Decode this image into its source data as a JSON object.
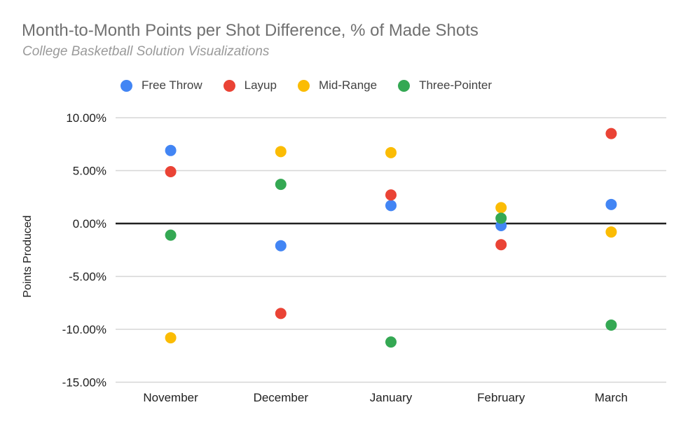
{
  "header": {
    "title": "Month-to-Month Points per Shot Difference, % of Made Shots",
    "subtitle": "College Basketball Solution Visualizations"
  },
  "colors": {
    "background": "#ffffff",
    "title_text": "#707070",
    "subtitle_text": "#9a9a9a",
    "axis_text": "#212121",
    "legend_text": "#424242",
    "gridline": "#d6d6d6",
    "zero_line": "#212121",
    "series_blue": "#4285F4",
    "series_red": "#EA4335",
    "series_yellow": "#FBBC04",
    "series_green": "#34A853"
  },
  "chart_data": {
    "type": "scatter",
    "title": "Month-to-Month Points per Shot Difference, % of Made Shots",
    "subtitle": "College Basketball Solution Visualizations",
    "categories": [
      "November",
      "December",
      "January",
      "February",
      "March"
    ],
    "series": [
      {
        "name": "Free Throw",
        "color": "#4285F4",
        "values": [
          6.9,
          -2.1,
          1.7,
          -0.2,
          1.8
        ]
      },
      {
        "name": "Layup",
        "color": "#EA4335",
        "values": [
          4.9,
          -8.5,
          2.7,
          -2.0,
          8.5
        ]
      },
      {
        "name": "Mid-Range",
        "color": "#FBBC04",
        "values": [
          -10.8,
          6.8,
          6.7,
          1.5,
          -0.8
        ]
      },
      {
        "name": "Three-Pointer",
        "color": "#34A853",
        "values": [
          -1.1,
          3.7,
          -11.2,
          0.5,
          -9.6
        ]
      }
    ],
    "xlabel": "",
    "ylabel": "Points Produced",
    "ylim": [
      -15,
      10
    ],
    "yticks": [
      {
        "label": "10.00%",
        "value": 10
      },
      {
        "label": "5.00%",
        "value": 5
      },
      {
        "label": "0.00%",
        "value": 0
      },
      {
        "label": "-5.00%",
        "value": -5
      },
      {
        "label": "-10.00%",
        "value": -10
      },
      {
        "label": "-15.00%",
        "value": -15
      }
    ],
    "grid": true,
    "legend_position": "top",
    "point_radius_px": 8
  }
}
